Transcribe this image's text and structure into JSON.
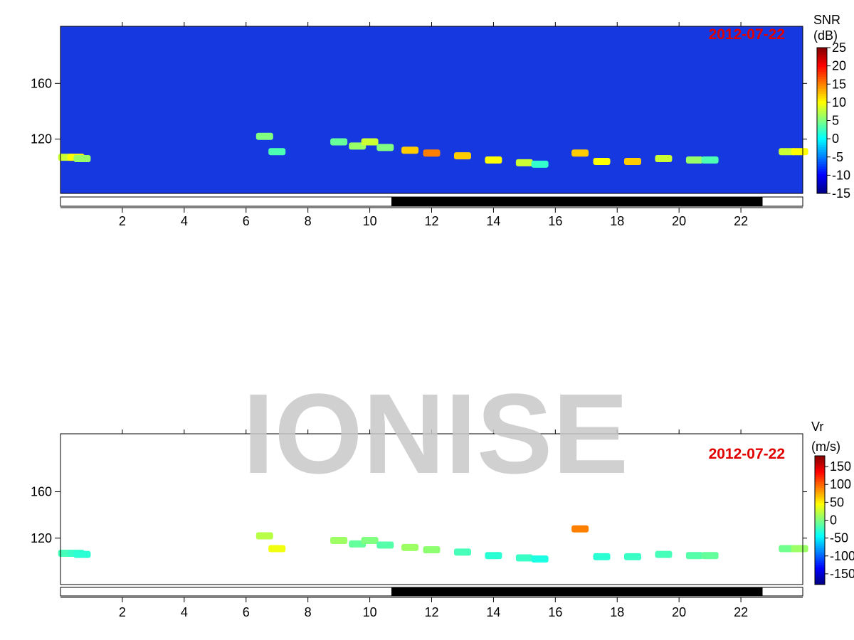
{
  "watermark": "IONISE",
  "chart_data": [
    {
      "type": "heatmap",
      "background": "#1638e0",
      "date": "2012-07-22",
      "colorbar_label": [
        "SNR",
        "(dB)"
      ],
      "xlim": [
        0,
        24
      ],
      "xticks": [
        2,
        4,
        6,
        8,
        10,
        12,
        14,
        16,
        18,
        20,
        22
      ],
      "ylim": [
        81,
        201
      ],
      "yticks": [
        120,
        160
      ],
      "clim": [
        -15,
        25
      ],
      "cticks": [
        25,
        20,
        15,
        10,
        5,
        0,
        -5,
        -10,
        -15
      ],
      "night": [
        10.7,
        22.7
      ],
      "x": [
        0.2,
        0.5,
        0.7,
        6.6,
        7.0,
        9.0,
        9.6,
        10.0,
        10.5,
        11.3,
        12.0,
        13.0,
        14.0,
        15.0,
        15.5,
        16.8,
        17.5,
        18.5,
        19.5,
        20.5,
        21.0,
        23.5,
        23.9
      ],
      "y": [
        107,
        107,
        106,
        122,
        111,
        118,
        115,
        118,
        114,
        112,
        110,
        108,
        105,
        103,
        102,
        110,
        104,
        104,
        106,
        105,
        105,
        111,
        111
      ],
      "values": [
        8,
        10,
        6,
        5,
        3,
        4,
        6,
        8,
        5,
        12,
        15,
        12,
        10,
        8,
        2,
        12,
        10,
        12,
        8,
        6,
        3,
        8,
        10
      ]
    },
    {
      "type": "heatmap",
      "background": "#ffffff",
      "date": "2012-07-22",
      "colorbar_label": [
        "Vr",
        "(m/s)"
      ],
      "xlim": [
        0,
        24
      ],
      "xticks": [
        2,
        4,
        6,
        8,
        10,
        12,
        14,
        16,
        18,
        20,
        22
      ],
      "ylim": [
        80,
        210
      ],
      "yticks": [
        120,
        160
      ],
      "clim": [
        -180,
        180
      ],
      "cticks": [
        150,
        100,
        50,
        0,
        -50,
        -100,
        -150
      ],
      "night": [
        10.7,
        22.7
      ],
      "x": [
        0.2,
        0.5,
        0.7,
        6.6,
        7.0,
        9.0,
        9.6,
        10.0,
        10.5,
        11.3,
        12.0,
        13.0,
        14.0,
        15.0,
        15.5,
        16.8,
        17.5,
        18.5,
        19.5,
        20.5,
        21.0,
        23.5,
        23.9
      ],
      "y": [
        107,
        107,
        106,
        122,
        111,
        118,
        115,
        118,
        114,
        112,
        110,
        108,
        105,
        103,
        102,
        128,
        104,
        104,
        106,
        105,
        105,
        111,
        111
      ],
      "values": [
        -20,
        -25,
        -30,
        20,
        40,
        10,
        -10,
        0,
        -15,
        10,
        5,
        -20,
        -30,
        -25,
        -35,
        90,
        -30,
        -25,
        -20,
        -15,
        -10,
        -5,
        10
      ]
    }
  ]
}
